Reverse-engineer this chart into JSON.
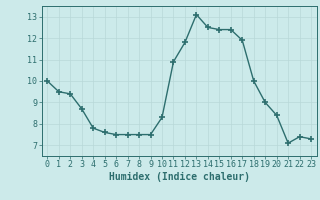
{
  "x": [
    0,
    1,
    2,
    3,
    4,
    5,
    6,
    7,
    8,
    9,
    10,
    11,
    12,
    13,
    14,
    15,
    16,
    17,
    18,
    19,
    20,
    21,
    22,
    23
  ],
  "y": [
    10.0,
    9.5,
    9.4,
    8.7,
    7.8,
    7.6,
    7.5,
    7.5,
    7.5,
    7.5,
    8.3,
    10.9,
    11.8,
    13.1,
    12.5,
    12.4,
    12.4,
    11.9,
    10.0,
    9.0,
    8.4,
    7.1,
    7.4,
    7.3
  ],
  "line_color": "#2d6e6e",
  "marker": "+",
  "markersize": 4,
  "markeredgewidth": 1.2,
  "linewidth": 1.0,
  "bg_color": "#cceaea",
  "grid_color": "#b8d8d8",
  "xlabel": "Humidex (Indice chaleur)",
  "xlabel_fontsize": 7,
  "xlabel_weight": "bold",
  "xlim": [
    -0.5,
    23.5
  ],
  "ylim": [
    6.5,
    13.5
  ],
  "yticks": [
    7,
    8,
    9,
    10,
    11,
    12,
    13
  ],
  "xticks": [
    0,
    1,
    2,
    3,
    4,
    5,
    6,
    7,
    8,
    9,
    10,
    11,
    12,
    13,
    14,
    15,
    16,
    17,
    18,
    19,
    20,
    21,
    22,
    23
  ],
  "tick_fontsize": 6,
  "tick_color": "#2d6e6e",
  "spine_color": "#2d6e6e"
}
